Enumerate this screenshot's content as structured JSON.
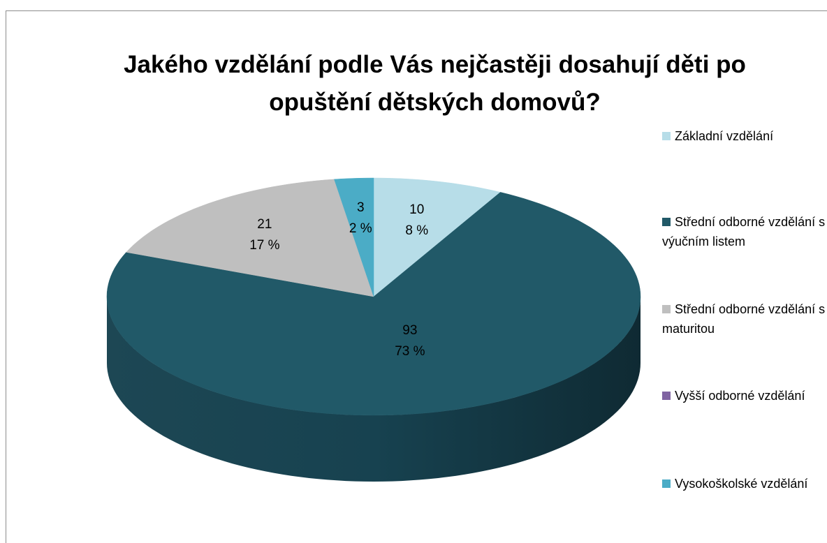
{
  "chart_data": {
    "type": "pie3d",
    "title": "Jakého vzdělání podle Vás nejčastěji dosahují děti po opuštění dětských domovů?",
    "categories": [
      "Základní vzdělání",
      "Střední odborné vzdělání s výučním listem",
      "Střední odborné vzdělání s maturitou",
      "Vyšší odborné vzdělání",
      "Vysokoškolské vzdělání"
    ],
    "values": [
      10,
      93,
      21,
      0,
      3
    ],
    "shares": [
      8,
      73,
      17,
      0,
      2
    ],
    "share_labels": [
      "8 %",
      "73 %",
      "17 %",
      null,
      "2 %"
    ],
    "colors": [
      "#b7dde8",
      "#215968",
      "#bfbfbf",
      "#8064a2",
      "#4bacc6"
    ],
    "legend": "right"
  }
}
